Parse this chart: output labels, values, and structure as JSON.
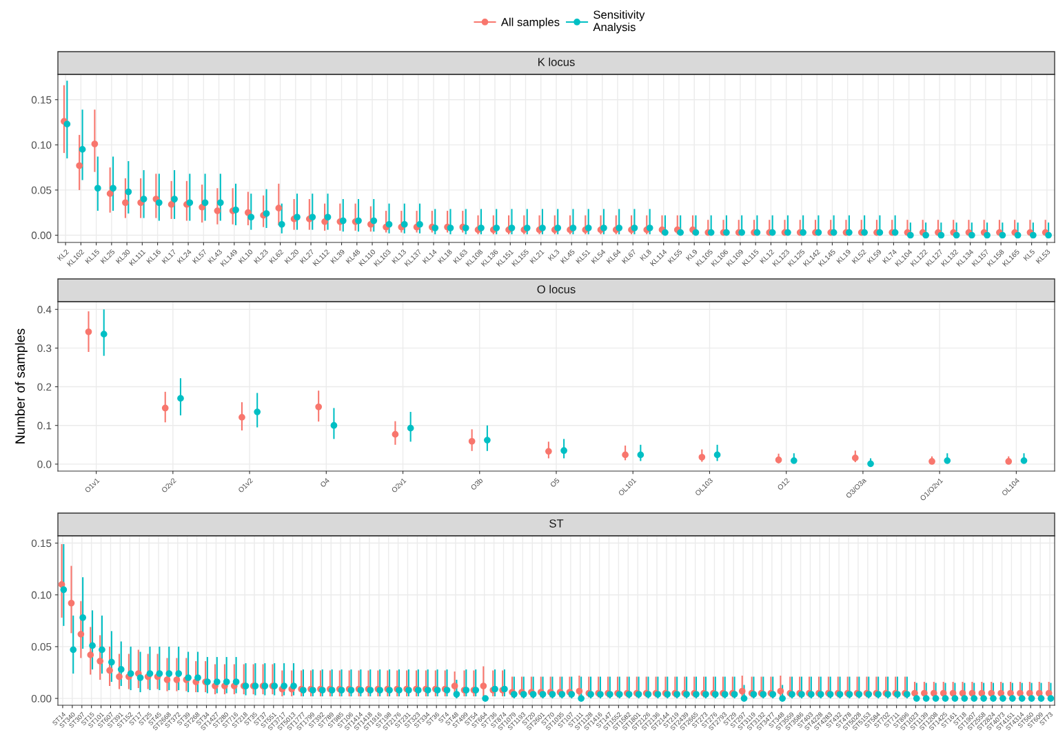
{
  "chart_data": [
    {
      "type": "scatter",
      "title": "K locus",
      "legend": "top",
      "marker": "circle",
      "grid": true,
      "categories": [
        "KL2",
        "KL102",
        "KL15",
        "KL25",
        "KL30",
        "KL111",
        "KL16",
        "KL17",
        "KL24",
        "KL57",
        "KL43",
        "KL149",
        "KL10",
        "KL23",
        "KL62",
        "KL20",
        "KL27",
        "KL112",
        "KL39",
        "KL48",
        "KL110",
        "KL103",
        "KL13",
        "KL137",
        "KL14",
        "KL18",
        "KL63",
        "KL108",
        "KL136",
        "KL151",
        "KL155",
        "KL21",
        "KL3",
        "KL45",
        "KL51",
        "KL54",
        "KL64",
        "KL67",
        "KL8",
        "KL114",
        "KL55",
        "KL9",
        "KL105",
        "KL106",
        "KL109",
        "KL115",
        "KL12",
        "KL123",
        "KL125",
        "KL142",
        "KL145",
        "KL19",
        "KL52",
        "KL59",
        "KL74",
        "KL104",
        "KL122",
        "KL127",
        "KL132",
        "KL134",
        "KL157",
        "KL158",
        "KL165",
        "KL5",
        "KL53"
      ],
      "ylim": [
        -0.008,
        0.178
      ],
      "yticks": [
        {
          "value": 0,
          "label": "0.00"
        },
        {
          "value": 0.05,
          "label": "0.05"
        },
        {
          "value": 0.1,
          "label": "0.10"
        },
        {
          "value": 0.15,
          "label": "0.15"
        }
      ],
      "series": [
        {
          "name": "All samples",
          "color": "#f8766d",
          "values": [
            0.126,
            0.077,
            0.101,
            0.046,
            0.036,
            0.036,
            0.04,
            0.034,
            0.034,
            0.031,
            0.027,
            0.027,
            0.025,
            0.022,
            0.03,
            0.018,
            0.018,
            0.015,
            0.015,
            0.015,
            0.012,
            0.009,
            0.009,
            0.009,
            0.009,
            0.009,
            0.009,
            0.006,
            0.006,
            0.006,
            0.006,
            0.006,
            0.006,
            0.006,
            0.006,
            0.006,
            0.006,
            0.006,
            0.006,
            0.006,
            0.006,
            0.006,
            0.003,
            0.003,
            0.003,
            0.003,
            0.003,
            0.003,
            0.003,
            0.003,
            0.003,
            0.003,
            0.003,
            0.003,
            0.003,
            0.003,
            0.003,
            0.003,
            0.003,
            0.003,
            0.003,
            0.003,
            0.003,
            0.003,
            0.003
          ],
          "errors": [
            [
              0.091,
              0.166
            ],
            [
              0.05,
              0.111
            ],
            [
              0.07,
              0.139
            ],
            [
              0.025,
              0.075
            ],
            [
              0.019,
              0.063
            ],
            [
              0.019,
              0.063
            ],
            [
              0.019,
              0.068
            ],
            [
              0.018,
              0.06
            ],
            [
              0.016,
              0.06
            ],
            [
              0.014,
              0.056
            ],
            [
              0.012,
              0.052
            ],
            [
              0.012,
              0.052
            ],
            [
              0.011,
              0.048
            ],
            [
              0.009,
              0.044
            ],
            [
              0.011,
              0.057
            ],
            [
              0.006,
              0.04
            ],
            [
              0.006,
              0.04
            ],
            [
              0.005,
              0.035
            ],
            [
              0.005,
              0.035
            ],
            [
              0.005,
              0.035
            ],
            [
              0.004,
              0.032
            ],
            [
              0.003,
              0.027
            ],
            [
              0.003,
              0.027
            ],
            [
              0.003,
              0.027
            ],
            [
              0.003,
              0.027
            ],
            [
              0.003,
              0.027
            ],
            [
              0.003,
              0.027
            ],
            [
              0.001,
              0.022
            ],
            [
              0.001,
              0.022
            ],
            [
              0.001,
              0.022
            ],
            [
              0.001,
              0.022
            ],
            [
              0.001,
              0.022
            ],
            [
              0.001,
              0.022
            ],
            [
              0.001,
              0.022
            ],
            [
              0.001,
              0.022
            ],
            [
              0.001,
              0.022
            ],
            [
              0.001,
              0.022
            ],
            [
              0.001,
              0.022
            ],
            [
              0.001,
              0.022
            ],
            [
              0.001,
              0.022
            ],
            [
              0.001,
              0.022
            ],
            [
              0.001,
              0.022
            ],
            [
              0,
              0.017
            ],
            [
              0,
              0.017
            ],
            [
              0,
              0.017
            ],
            [
              0,
              0.017
            ],
            [
              0,
              0.017
            ],
            [
              0,
              0.017
            ],
            [
              0,
              0.017
            ],
            [
              0,
              0.017
            ],
            [
              0,
              0.017
            ],
            [
              0,
              0.017
            ],
            [
              0,
              0.017
            ],
            [
              0,
              0.017
            ],
            [
              0,
              0.017
            ],
            [
              0,
              0.017
            ],
            [
              0,
              0.017
            ],
            [
              0,
              0.017
            ],
            [
              0,
              0.017
            ],
            [
              0,
              0.017
            ],
            [
              0,
              0.017
            ],
            [
              0,
              0.017
            ],
            [
              0,
              0.017
            ],
            [
              0,
              0.017
            ],
            [
              0,
              0.017
            ]
          ]
        },
        {
          "name": "Sensitivity\nAnalysis",
          "color": "#00bfc4",
          "values": [
            0.123,
            0.095,
            0.052,
            0.052,
            0.048,
            0.04,
            0.036,
            0.04,
            0.036,
            0.036,
            0.036,
            0.028,
            0.02,
            0.024,
            0.012,
            0.02,
            0.02,
            0.02,
            0.016,
            0.016,
            0.016,
            0.012,
            0.012,
            0.012,
            0.008,
            0.008,
            0.008,
            0.008,
            0.008,
            0.008,
            0.008,
            0.008,
            0.008,
            0.008,
            0.008,
            0.008,
            0.008,
            0.008,
            0.008,
            0.003,
            0.003,
            0.003,
            0.003,
            0.003,
            0.003,
            0.003,
            0.003,
            0.003,
            0.003,
            0.003,
            0.003,
            0.003,
            0.003,
            0.003,
            0.003,
            0,
            0,
            0,
            0,
            0,
            0,
            0,
            0,
            0,
            0
          ],
          "errors": [
            [
              0.085,
              0.171
            ],
            [
              0.061,
              0.139
            ],
            [
              0.027,
              0.087
            ],
            [
              0.027,
              0.087
            ],
            [
              0.024,
              0.082
            ],
            [
              0.019,
              0.072
            ],
            [
              0.016,
              0.068
            ],
            [
              0.018,
              0.072
            ],
            [
              0.016,
              0.068
            ],
            [
              0.016,
              0.068
            ],
            [
              0.016,
              0.068
            ],
            [
              0.011,
              0.057
            ],
            [
              0.006,
              0.046
            ],
            [
              0.008,
              0.051
            ],
            [
              0.002,
              0.035
            ],
            [
              0.006,
              0.046
            ],
            [
              0.006,
              0.046
            ],
            [
              0.006,
              0.046
            ],
            [
              0.004,
              0.04
            ],
            [
              0.004,
              0.04
            ],
            [
              0.004,
              0.04
            ],
            [
              0.002,
              0.035
            ],
            [
              0.002,
              0.035
            ],
            [
              0.002,
              0.035
            ],
            [
              0.001,
              0.029
            ],
            [
              0.001,
              0.029
            ],
            [
              0.001,
              0.029
            ],
            [
              0.001,
              0.029
            ],
            [
              0.001,
              0.029
            ],
            [
              0.001,
              0.029
            ],
            [
              0.001,
              0.029
            ],
            [
              0.001,
              0.029
            ],
            [
              0.001,
              0.029
            ],
            [
              0.001,
              0.029
            ],
            [
              0.001,
              0.029
            ],
            [
              0.001,
              0.029
            ],
            [
              0.001,
              0.029
            ],
            [
              0.001,
              0.029
            ],
            [
              0.001,
              0.029
            ],
            [
              0,
              0.022
            ],
            [
              0,
              0.022
            ],
            [
              0,
              0.022
            ],
            [
              0,
              0.022
            ],
            [
              0,
              0.022
            ],
            [
              0,
              0.022
            ],
            [
              0,
              0.022
            ],
            [
              0,
              0.022
            ],
            [
              0,
              0.022
            ],
            [
              0,
              0.022
            ],
            [
              0,
              0.022
            ],
            [
              0,
              0.022
            ],
            [
              0,
              0.022
            ],
            [
              0,
              0.022
            ],
            [
              0,
              0.022
            ],
            [
              0,
              0.022
            ],
            [
              0,
              0.014
            ],
            [
              0,
              0.014
            ],
            [
              0,
              0.014
            ],
            [
              0,
              0.014
            ],
            [
              0,
              0.014
            ],
            [
              0,
              0.014
            ],
            [
              0,
              0.014
            ],
            [
              0,
              0.014
            ],
            [
              0,
              0.014
            ],
            [
              0,
              0.014
            ]
          ]
        }
      ]
    },
    {
      "type": "scatter",
      "title": "O locus",
      "ylabel": "Number of samples",
      "marker": "circle",
      "grid": true,
      "categories": [
        "O1v1",
        "O2v2",
        "O1v2",
        "O4",
        "O2v1",
        "O3b",
        "O5",
        "OL101",
        "OL103",
        "O12",
        "O3/O3a",
        "O1/O2v1",
        "OL104"
      ],
      "ylim": [
        -0.018,
        0.42
      ],
      "yticks": [
        {
          "value": 0,
          "label": "0.0"
        },
        {
          "value": 0.1,
          "label": "0.1"
        },
        {
          "value": 0.2,
          "label": "0.2"
        },
        {
          "value": 0.3,
          "label": "0.3"
        },
        {
          "value": 0.4,
          "label": "0.4"
        }
      ],
      "series": [
        {
          "color": "#f8766d",
          "values": [
            0.342,
            0.145,
            0.121,
            0.148,
            0.077,
            0.059,
            0.033,
            0.024,
            0.018,
            0.011,
            0.016,
            0.007,
            0.007
          ],
          "errors": [
            [
              0.29,
              0.395
            ],
            [
              0.108,
              0.187
            ],
            [
              0.087,
              0.16
            ],
            [
              0.11,
              0.19
            ],
            [
              0.05,
              0.111
            ],
            [
              0.034,
              0.09
            ],
            [
              0.015,
              0.058
            ],
            [
              0.01,
              0.048
            ],
            [
              0.006,
              0.038
            ],
            [
              0.002,
              0.027
            ],
            [
              0.005,
              0.035
            ],
            [
              0.001,
              0.02
            ],
            [
              0.001,
              0.02
            ]
          ]
        },
        {
          "color": "#00bfc4",
          "values": [
            0.336,
            0.17,
            0.135,
            0.1,
            0.093,
            0.062,
            0.035,
            0.024,
            0.024,
            0.009,
            0.001,
            0.009,
            0.009
          ],
          "errors": [
            [
              0.28,
              0.4
            ],
            [
              0.126,
              0.222
            ],
            [
              0.095,
              0.184
            ],
            [
              0.065,
              0.145
            ],
            [
              0.058,
              0.135
            ],
            [
              0.034,
              0.1
            ],
            [
              0.015,
              0.065
            ],
            [
              0.008,
              0.05
            ],
            [
              0.008,
              0.05
            ],
            [
              0.002,
              0.028
            ],
            [
              0,
              0.015
            ],
            [
              0.002,
              0.028
            ],
            [
              0.002,
              0.028
            ]
          ]
        }
      ]
    },
    {
      "type": "scatter",
      "title": "ST",
      "marker": "circle",
      "grid": true,
      "categories": [
        "ST14",
        "ST340",
        "ST307",
        "ST15",
        "ST101",
        "ST607",
        "ST391",
        "ST152",
        "ST17",
        "ST25",
        "ST45",
        "ST2668",
        "ST372",
        "ST39",
        "ST268",
        "ST34",
        "ST1427",
        "ST280",
        "ST716",
        "ST218",
        "ST35",
        "ST37",
        "ST551",
        "ST3717",
        "ST5013",
        "ST1777",
        "ST1799",
        "ST392",
        "ST789",
        "ST985",
        "ST106",
        "ST1414",
        "ST1418",
        "ST1916",
        "ST198",
        "ST2176",
        "ST231",
        "ST323",
        "ST334",
        "ST36",
        "ST4",
        "ST48",
        "ST499",
        "ST54",
        "ST664",
        "ST736",
        "ST874",
        "ST1079",
        "ST1193",
        "ST20",
        "ST2601",
        "ST70",
        "ST1035",
        "ST107",
        "ST111",
        "ST1128",
        "ST1416",
        "ST147",
        "ST1552",
        "ST1582",
        "ST1801",
        "ST2126",
        "ST2136",
        "ST2144",
        "ST219",
        "ST2439",
        "ST2665",
        "ST273",
        "ST276",
        "ST2793",
        "ST29",
        "ST297",
        "ST3119",
        "ST3132",
        "ST3477",
        "ST348",
        "ST3559",
        "ST3586",
        "ST403",
        "ST4228",
        "ST4283",
        "ST432",
        "ST478",
        "ST5028",
        "ST5153",
        "ST584",
        "ST702",
        "ST711",
        "ST896",
        "ST1023",
        "ST1139",
        "ST1208",
        "ST1425",
        "ST161",
        "ST18",
        "ST1907",
        "ST2558",
        "ST2824",
        "ST4073",
        "ST4151",
        "ST4314",
        "ST560",
        "ST609",
        "ST73"
      ],
      "ylim": [
        -0.0066,
        0.157
      ],
      "yticks": [
        {
          "value": 0,
          "label": "0.00"
        },
        {
          "value": 0.05,
          "label": "0.05"
        },
        {
          "value": 0.1,
          "label": "0.10"
        },
        {
          "value": 0.15,
          "label": "0.15"
        }
      ],
      "series": [
        {
          "color": "#f8766d",
          "values": [
            0.11,
            0.092,
            0.062,
            0.042,
            0.036,
            0.027,
            0.021,
            0.021,
            0.024,
            0.021,
            0.021,
            0.018,
            0.018,
            0.018,
            0.016,
            0.016,
            0.012,
            0.012,
            0.012,
            0.012,
            0.012,
            0.012,
            0.012,
            0.009,
            0.009,
            0.009,
            0.009,
            0.009,
            0.009,
            0.009,
            0.009,
            0.009,
            0.009,
            0.009,
            0.009,
            0.009,
            0.009,
            0.009,
            0.009,
            0.009,
            0.009,
            0.012,
            0.008,
            0.008,
            0.012,
            0.008,
            0.008,
            0.006,
            0.006,
            0.006,
            0.006,
            0.006,
            0.006,
            0.006,
            0.007,
            0.005,
            0.005,
            0.005,
            0.005,
            0.005,
            0.005,
            0.005,
            0.005,
            0.005,
            0.005,
            0.005,
            0.005,
            0.005,
            0.005,
            0.005,
            0.005,
            0.007,
            0.005,
            0.005,
            0.005,
            0.007,
            0.005,
            0.005,
            0.005,
            0.005,
            0.005,
            0.005,
            0.005,
            0.005,
            0.005,
            0.005,
            0.005,
            0.005,
            0.005,
            0.005,
            0.005,
            0.005,
            0.005,
            0.005,
            0.005,
            0.005,
            0.005,
            0.005,
            0.005,
            0.005,
            0.005,
            0.005,
            0.005,
            0.005
          ],
          "errors": [
            [
              0.078,
              0.149
            ],
            [
              0.063,
              0.128
            ],
            [
              0.039,
              0.094
            ],
            [
              0.023,
              0.069
            ],
            [
              0.018,
              0.061
            ],
            [
              0.012,
              0.05
            ],
            [
              0.009,
              0.043
            ],
            [
              0.009,
              0.043
            ],
            [
              0.01,
              0.047
            ],
            [
              0.009,
              0.043
            ],
            [
              0.009,
              0.043
            ],
            [
              0.007,
              0.039
            ],
            [
              0.007,
              0.039
            ],
            [
              0.007,
              0.039
            ],
            [
              0.006,
              0.036
            ],
            [
              0.006,
              0.036
            ],
            [
              0.004,
              0.033
            ],
            [
              0.004,
              0.033
            ],
            [
              0.004,
              0.033
            ],
            [
              0.004,
              0.033
            ],
            [
              0.004,
              0.033
            ],
            [
              0.004,
              0.033
            ],
            [
              0.004,
              0.033
            ],
            [
              0.002,
              0.027
            ],
            [
              0.002,
              0.027
            ],
            [
              0.002,
              0.027
            ],
            [
              0.002,
              0.027
            ],
            [
              0.002,
              0.027
            ],
            [
              0.002,
              0.027
            ],
            [
              0.002,
              0.027
            ],
            [
              0.002,
              0.027
            ],
            [
              0.002,
              0.027
            ],
            [
              0.002,
              0.027
            ],
            [
              0.002,
              0.027
            ],
            [
              0.002,
              0.027
            ],
            [
              0.002,
              0.027
            ],
            [
              0.002,
              0.027
            ],
            [
              0.002,
              0.027
            ],
            [
              0.002,
              0.027
            ],
            [
              0.002,
              0.027
            ],
            [
              0.002,
              0.027
            ],
            [
              0.003,
              0.026
            ],
            [
              0.002,
              0.027
            ],
            [
              0.002,
              0.027
            ],
            [
              0.002,
              0.031
            ],
            [
              0.002,
              0.027
            ],
            [
              0.002,
              0.027
            ],
            [
              0.001,
              0.021
            ],
            [
              0.001,
              0.021
            ],
            [
              0.001,
              0.021
            ],
            [
              0.001,
              0.021
            ],
            [
              0.001,
              0.021
            ],
            [
              0.001,
              0.021
            ],
            [
              0.001,
              0.021
            ],
            [
              0.001,
              0.022
            ],
            [
              0.001,
              0.021
            ],
            [
              0.001,
              0.021
            ],
            [
              0.001,
              0.021
            ],
            [
              0.001,
              0.021
            ],
            [
              0.001,
              0.021
            ],
            [
              0.001,
              0.021
            ],
            [
              0.001,
              0.021
            ],
            [
              0.001,
              0.021
            ],
            [
              0.001,
              0.021
            ],
            [
              0.001,
              0.021
            ],
            [
              0.001,
              0.021
            ],
            [
              0.001,
              0.021
            ],
            [
              0.001,
              0.021
            ],
            [
              0.001,
              0.021
            ],
            [
              0.001,
              0.021
            ],
            [
              0.001,
              0.021
            ],
            [
              0.001,
              0.022
            ],
            [
              0.001,
              0.021
            ],
            [
              0.001,
              0.021
            ],
            [
              0.001,
              0.021
            ],
            [
              0.001,
              0.022
            ],
            [
              0.001,
              0.021
            ],
            [
              0.001,
              0.021
            ],
            [
              0.001,
              0.021
            ],
            [
              0.001,
              0.021
            ],
            [
              0.001,
              0.021
            ],
            [
              0.001,
              0.021
            ],
            [
              0.001,
              0.021
            ],
            [
              0.001,
              0.021
            ],
            [
              0.001,
              0.021
            ],
            [
              0.001,
              0.021
            ],
            [
              0.001,
              0.021
            ],
            [
              0.001,
              0.021
            ],
            [
              0.001,
              0.021
            ],
            [
              0.001,
              0.016
            ],
            [
              0.001,
              0.016
            ],
            [
              0.001,
              0.016
            ],
            [
              0.001,
              0.016
            ],
            [
              0.001,
              0.016
            ],
            [
              0.001,
              0.016
            ],
            [
              0.001,
              0.016
            ],
            [
              0.001,
              0.016
            ],
            [
              0.001,
              0.016
            ],
            [
              0.001,
              0.016
            ],
            [
              0.001,
              0.016
            ],
            [
              0.001,
              0.016
            ],
            [
              0.001,
              0.016
            ],
            [
              0.001,
              0.016
            ],
            [
              0.001,
              0.016
            ]
          ]
        },
        {
          "color": "#00bfc4",
          "values": [
            0.105,
            0.047,
            0.078,
            0.051,
            0.047,
            0.035,
            0.028,
            0.024,
            0.02,
            0.024,
            0.024,
            0.024,
            0.024,
            0.02,
            0.02,
            0.016,
            0.016,
            0.016,
            0.016,
            0.012,
            0.012,
            0.012,
            0.012,
            0.012,
            0.012,
            0.008,
            0.008,
            0.008,
            0.008,
            0.008,
            0.008,
            0.008,
            0.008,
            0.008,
            0.008,
            0.008,
            0.008,
            0.008,
            0.008,
            0.008,
            0.008,
            0.004,
            0.008,
            0.008,
            0,
            0.009,
            0.009,
            0.004,
            0.004,
            0.004,
            0.004,
            0.004,
            0.004,
            0.004,
            0,
            0.004,
            0.004,
            0.004,
            0.004,
            0.004,
            0.004,
            0.004,
            0.004,
            0.004,
            0.004,
            0.004,
            0.004,
            0.004,
            0.004,
            0.004,
            0.004,
            0,
            0.004,
            0.004,
            0.004,
            0,
            0.004,
            0.004,
            0.004,
            0.004,
            0.004,
            0.004,
            0.004,
            0.004,
            0.004,
            0.004,
            0.004,
            0.004,
            0.004,
            0,
            0,
            0,
            0,
            0,
            0,
            0,
            0,
            0,
            0,
            0,
            0,
            0,
            0,
            0
          ],
          "errors": [
            [
              0.07,
              0.149
            ],
            [
              0.024,
              0.08
            ],
            [
              0.048,
              0.117
            ],
            [
              0.028,
              0.085
            ],
            [
              0.024,
              0.08
            ],
            [
              0.016,
              0.065
            ],
            [
              0.012,
              0.055
            ],
            [
              0.008,
              0.05
            ],
            [
              0.006,
              0.045
            ],
            [
              0.008,
              0.05
            ],
            [
              0.008,
              0.05
            ],
            [
              0.008,
              0.05
            ],
            [
              0.008,
              0.05
            ],
            [
              0.006,
              0.045
            ],
            [
              0.006,
              0.045
            ],
            [
              0.005,
              0.04
            ],
            [
              0.005,
              0.04
            ],
            [
              0.005,
              0.04
            ],
            [
              0.005,
              0.04
            ],
            [
              0.003,
              0.034
            ],
            [
              0.003,
              0.034
            ],
            [
              0.003,
              0.034
            ],
            [
              0.003,
              0.034
            ],
            [
              0.003,
              0.034
            ],
            [
              0.003,
              0.034
            ],
            [
              0.002,
              0.028
            ],
            [
              0.002,
              0.028
            ],
            [
              0.002,
              0.028
            ],
            [
              0.002,
              0.028
            ],
            [
              0.002,
              0.028
            ],
            [
              0.002,
              0.028
            ],
            [
              0.002,
              0.028
            ],
            [
              0.002,
              0.028
            ],
            [
              0.002,
              0.028
            ],
            [
              0.002,
              0.028
            ],
            [
              0.002,
              0.028
            ],
            [
              0.002,
              0.028
            ],
            [
              0.002,
              0.028
            ],
            [
              0.002,
              0.028
            ],
            [
              0.002,
              0.028
            ],
            [
              0.002,
              0.028
            ],
            [
              0,
              0.018
            ],
            [
              0.002,
              0.028
            ],
            [
              0.002,
              0.028
            ],
            null,
            [
              0.002,
              0.028
            ],
            [
              0.002,
              0.028
            ],
            [
              0,
              0.021
            ],
            [
              0,
              0.021
            ],
            [
              0,
              0.021
            ],
            [
              0,
              0.021
            ],
            [
              0,
              0.021
            ],
            [
              0,
              0.021
            ],
            [
              0,
              0.021
            ],
            [
              0,
              0.021
            ],
            [
              0,
              0.021
            ],
            [
              0,
              0.021
            ],
            [
              0,
              0.021
            ],
            [
              0,
              0.021
            ],
            [
              0,
              0.021
            ],
            [
              0,
              0.021
            ],
            [
              0,
              0.021
            ],
            [
              0,
              0.021
            ],
            [
              0,
              0.021
            ],
            [
              0,
              0.021
            ],
            [
              0,
              0.021
            ],
            [
              0,
              0.021
            ],
            [
              0,
              0.021
            ],
            [
              0,
              0.021
            ],
            [
              0,
              0.021
            ],
            [
              0,
              0.021
            ],
            [
              0,
              0.013
            ],
            [
              0,
              0.021
            ],
            [
              0,
              0.021
            ],
            [
              0,
              0.021
            ],
            [
              0,
              0.013
            ],
            [
              0,
              0.021
            ],
            [
              0,
              0.021
            ],
            [
              0,
              0.021
            ],
            [
              0,
              0.021
            ],
            [
              0,
              0.021
            ],
            [
              0,
              0.021
            ],
            [
              0,
              0.021
            ],
            [
              0,
              0.021
            ],
            [
              0,
              0.021
            ],
            [
              0,
              0.021
            ],
            [
              0,
              0.021
            ],
            [
              0,
              0.021
            ],
            [
              0,
              0.021
            ],
            [
              0,
              0.015
            ],
            [
              0,
              0.015
            ],
            [
              0,
              0.015
            ],
            [
              0,
              0.015
            ],
            [
              0,
              0.015
            ],
            [
              0,
              0.015
            ],
            [
              0,
              0.015
            ],
            [
              0,
              0.015
            ],
            [
              0,
              0.015
            ],
            [
              0,
              0.015
            ],
            [
              0,
              0.015
            ],
            [
              0,
              0.015
            ],
            [
              0,
              0.015
            ],
            [
              0,
              0.015
            ],
            [
              0,
              0.015
            ]
          ]
        }
      ]
    }
  ]
}
